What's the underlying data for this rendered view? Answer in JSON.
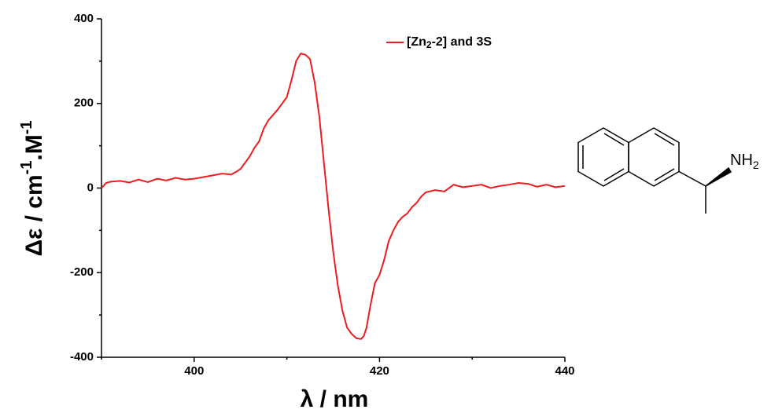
{
  "chart_data": {
    "type": "line",
    "xlabel": "λ / nm",
    "ylabel": [
      "Δε / cm",
      "-1",
      ".M",
      "-1"
    ],
    "x": [
      390,
      390.5,
      391,
      392,
      393,
      394,
      395,
      396,
      397,
      398,
      399,
      400,
      401,
      402,
      403,
      404,
      404.5,
      405,
      405.5,
      406,
      406.5,
      407,
      407.5,
      408,
      409,
      410,
      410.5,
      411,
      411.5,
      412,
      412.5,
      413,
      413.5,
      414,
      414.5,
      415,
      415.5,
      416,
      416.5,
      417,
      417.5,
      418,
      418.3,
      418.6,
      419,
      419.5,
      420,
      420.5,
      421,
      421.5,
      422,
      422.5,
      423,
      423.5,
      424,
      424.5,
      425,
      426,
      427,
      428,
      429,
      430,
      431,
      432,
      433,
      434,
      435,
      436,
      437,
      438,
      439,
      440
    ],
    "series": [
      {
        "name": [
          "[Zn",
          "2",
          "-2] and 3S"
        ],
        "color": "#ee1c1c",
        "values": [
          0,
          12,
          15,
          17,
          13,
          20,
          14,
          22,
          18,
          24,
          20,
          22,
          26,
          30,
          34,
          32,
          38,
          45,
          60,
          75,
          95,
          110,
          140,
          160,
          185,
          215,
          255,
          300,
          318,
          315,
          305,
          250,
          170,
          60,
          -50,
          -150,
          -230,
          -290,
          -330,
          -345,
          -355,
          -357,
          -350,
          -330,
          -280,
          -225,
          -205,
          -170,
          -125,
          -100,
          -80,
          -68,
          -60,
          -45,
          -35,
          -20,
          -10,
          -5,
          -8,
          8,
          2,
          5,
          8,
          0,
          5,
          8,
          12,
          10,
          3,
          8,
          2,
          5
        ]
      }
    ],
    "xlim": [
      390,
      440
    ],
    "xticks": [
      400,
      420,
      440
    ],
    "xminorticks": [
      390,
      410,
      430
    ],
    "ylim": [
      -400,
      400
    ],
    "yticks": [
      -400,
      -200,
      0,
      200,
      400
    ],
    "yminorticks": [
      -300,
      -100,
      100,
      300
    ],
    "legend": "top-right",
    "grid": false
  },
  "structure": {
    "label": [
      "NH",
      "2"
    ]
  }
}
